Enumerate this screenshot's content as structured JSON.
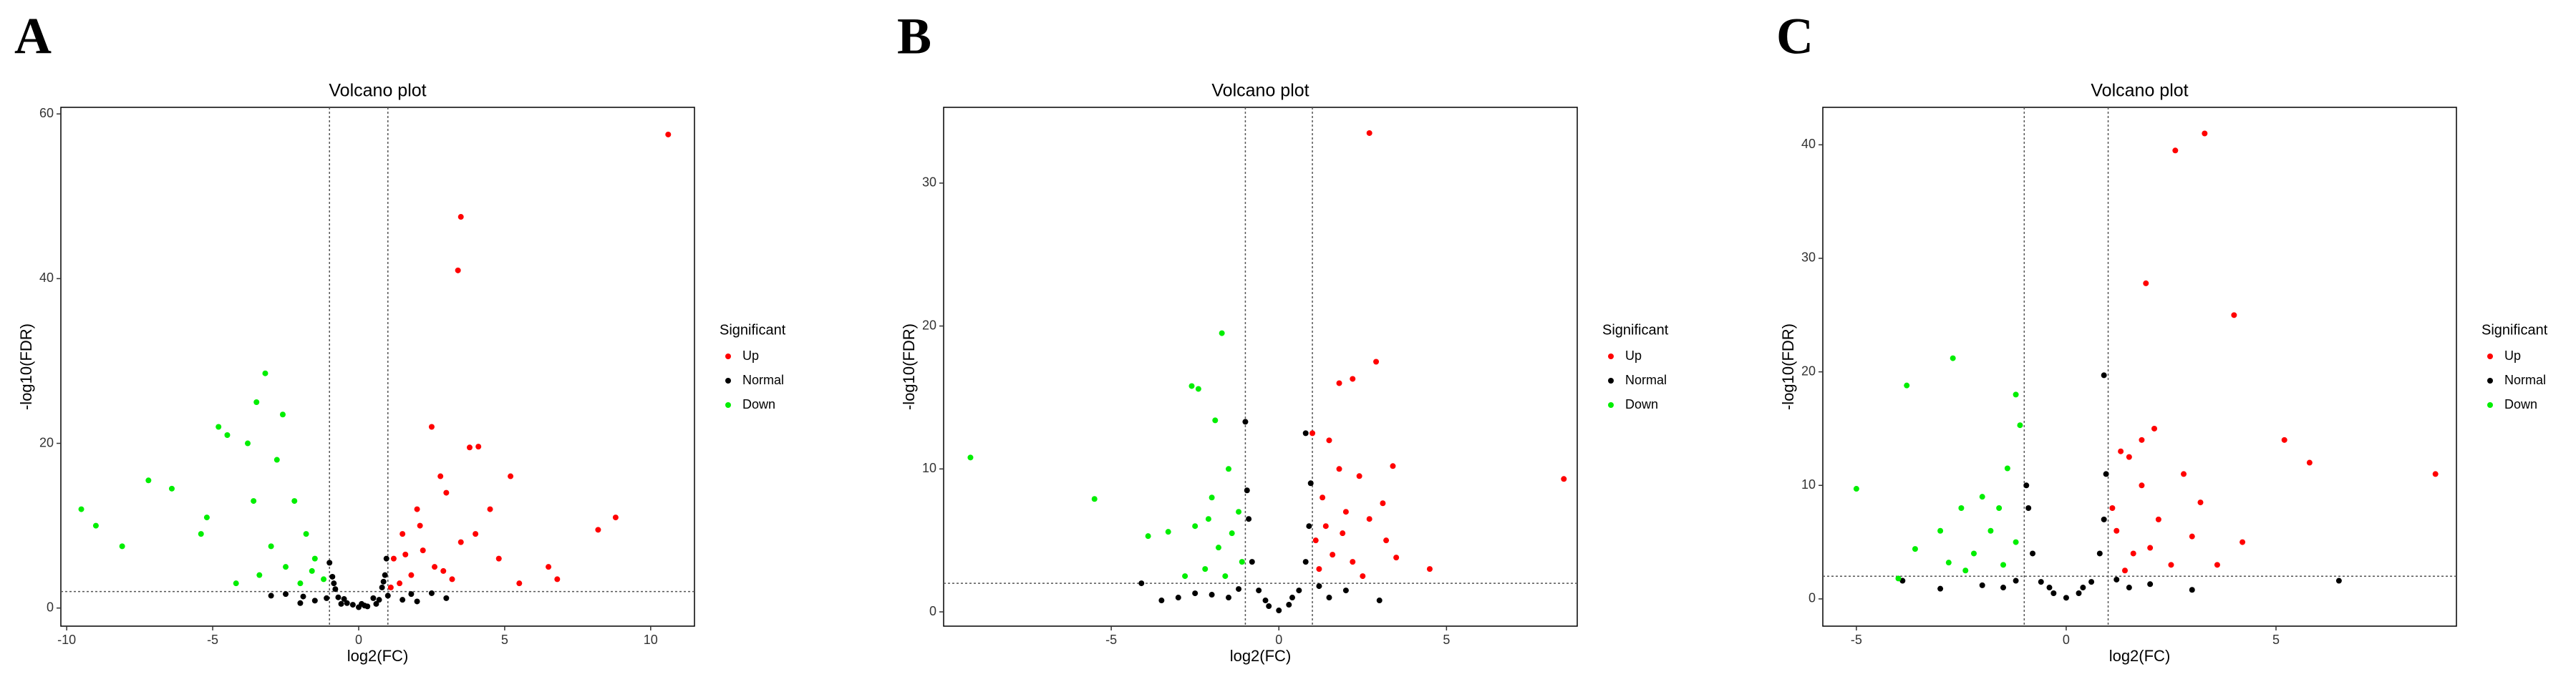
{
  "chart_data": [
    {
      "type": "scatter",
      "panel": "A",
      "title": "Volcano plot",
      "x_label": "log2(FC)",
      "y_label": "-log10(FDR)",
      "legend_title": "Significant",
      "xlim": [
        -10.2,
        11.5
      ],
      "ylim": [
        -2.2,
        60.8
      ],
      "xticks": [
        -10,
        -5,
        0,
        5,
        10
      ],
      "yticks": [
        0,
        20,
        40,
        60
      ],
      "vlines": [
        -1,
        1
      ],
      "hline": 2,
      "series": [
        {
          "name": "Up",
          "color": "#ff0000",
          "x": [
            10.6,
            3.5,
            3.4,
            2.5,
            3.8,
            4.1,
            2.8,
            5.2,
            8.8,
            8.2,
            4.5,
            3,
            2,
            1.5,
            1.2,
            2.2,
            1.8,
            3.5,
            4.8,
            6.5,
            5.5,
            6.8,
            1.4,
            2.6,
            1.1,
            3.2,
            2.1,
            1.6,
            4,
            2.9
          ],
          "values": [
            57.5,
            47.5,
            41,
            22,
            19.5,
            19.6,
            16,
            16,
            11,
            9.5,
            12,
            14,
            12,
            9,
            6,
            7,
            4,
            8,
            6,
            5,
            3,
            3.5,
            3,
            5,
            2.5,
            3.5,
            10,
            6.5,
            9,
            4.5
          ]
        },
        {
          "name": "Normal",
          "color": "#000000",
          "x": [
            0,
            0.2,
            -0.2,
            0.5,
            -0.5,
            0.8,
            -0.8,
            0.9,
            -0.9,
            0.95,
            -1,
            0.7,
            -0.7,
            0.3,
            -0.4,
            1.5,
            2,
            -1.5,
            -2,
            3,
            -3,
            1.8,
            -1.9,
            0.6,
            -0.6,
            1,
            -1.1,
            0.85,
            -0.85,
            2.5,
            -2.5,
            0.1
          ],
          "values": [
            0.1,
            0.3,
            0.4,
            1.2,
            1.1,
            2.5,
            2.3,
            4,
            3.8,
            6,
            5.5,
            1,
            1.3,
            0.2,
            0.6,
            1,
            0.8,
            0.9,
            0.6,
            1.2,
            1.5,
            1.7,
            1.4,
            0.5,
            0.5,
            1.5,
            1.2,
            3.2,
            3,
            1.8,
            1.7,
            0.5
          ]
        },
        {
          "name": "Down",
          "color": "#00ee00",
          "x": [
            -3.2,
            -2.6,
            -3.5,
            -4.8,
            -4.5,
            -3.8,
            -2.8,
            -9.5,
            -7.2,
            -6.4,
            -9,
            -8.1,
            -5.2,
            -3.6,
            -2.2,
            -1.8,
            -1.5,
            -2.5,
            -3,
            -1.2,
            -4.2,
            -5.4,
            -2,
            -1.6,
            -3.4
          ],
          "values": [
            28.5,
            23.5,
            25,
            22,
            21,
            20,
            18,
            12,
            15.5,
            14.5,
            10,
            7.5,
            11,
            13,
            13,
            9,
            6,
            5,
            7.5,
            3.5,
            3,
            9,
            3,
            4.5,
            4
          ]
        }
      ]
    },
    {
      "type": "scatter",
      "panel": "B",
      "title": "Volcano plot",
      "x_label": "log2(FC)",
      "y_label": "-log10(FDR)",
      "legend_title": "Significant",
      "xlim": [
        -10,
        8.9
      ],
      "ylim": [
        -1,
        35.3
      ],
      "xticks": [
        -5,
        0,
        5
      ],
      "yticks": [
        0,
        10,
        20,
        30
      ],
      "vlines": [
        -1,
        1
      ],
      "hline": 2,
      "series": [
        {
          "name": "Up",
          "color": "#ff0000",
          "x": [
            2.7,
            2.9,
            1.8,
            2.2,
            1,
            1.5,
            2.4,
            3.4,
            8.5,
            1.8,
            1.3,
            2,
            2.7,
            3.2,
            1.1,
            1.6,
            2.2,
            4.5,
            3.1,
            1.2,
            1.9,
            2.5,
            1.4,
            3.5
          ],
          "values": [
            33.5,
            17.5,
            16,
            16.3,
            12.5,
            12,
            9.5,
            10.2,
            9.3,
            10,
            8,
            7,
            6.5,
            5,
            5,
            4,
            3.5,
            3,
            7.6,
            3,
            5.5,
            2.5,
            6,
            3.8
          ]
        },
        {
          "name": "Normal",
          "color": "#000000",
          "x": [
            -1,
            0.8,
            -4.1,
            -3,
            -2.5,
            0,
            0.3,
            -0.3,
            0.6,
            -0.6,
            0.8,
            -0.8,
            0.9,
            -0.9,
            0.95,
            -0.95,
            1.5,
            -1.5,
            2,
            -2,
            3,
            -3.5,
            0.4,
            -0.4,
            1.2,
            -1.2
          ],
          "values": [
            13.3,
            12.5,
            2,
            1,
            1.3,
            0.1,
            0.5,
            0.4,
            1.5,
            1.5,
            3.5,
            3.5,
            6,
            6.5,
            9,
            8.5,
            1,
            1,
            1.5,
            1.2,
            0.8,
            0.8,
            1,
            0.8,
            1.8,
            1.6
          ]
        },
        {
          "name": "Down",
          "color": "#00ee00",
          "x": [
            -1.7,
            -2.6,
            -2.4,
            -1.9,
            -9.2,
            -5.5,
            -3.9,
            -3.3,
            -1.5,
            -2,
            -2.5,
            -1.2,
            -1.8,
            -2.2,
            -1.1,
            -2.8,
            -1.4,
            -2.1,
            -1.6
          ],
          "values": [
            19.5,
            15.8,
            15.6,
            13.4,
            10.8,
            7.9,
            5.3,
            5.6,
            10,
            8,
            6,
            7,
            4.5,
            3,
            3.5,
            2.5,
            5.5,
            6.5,
            2.5
          ]
        }
      ]
    },
    {
      "type": "scatter",
      "panel": "C",
      "title": "Volcano plot",
      "x_label": "log2(FC)",
      "y_label": "-log10(FDR)",
      "legend_title": "Significant",
      "xlim": [
        -5.8,
        9.3
      ],
      "ylim": [
        -2.4,
        43.3
      ],
      "xticks": [
        -5,
        0,
        5
      ],
      "yticks": [
        0,
        10,
        20,
        30,
        40
      ],
      "vlines": [
        -1,
        1
      ],
      "hline": 2,
      "series": [
        {
          "name": "Up",
          "color": "#ff0000",
          "x": [
            3.3,
            2.6,
            4,
            1.9,
            2.1,
            1.8,
            5.2,
            5.8,
            8.8,
            2.8,
            1.5,
            1.8,
            3.2,
            2.2,
            4.2,
            1.2,
            1.6,
            2.5,
            3,
            1.4,
            1.1,
            3.6,
            2,
            1.3
          ],
          "values": [
            41,
            39.5,
            25,
            27.8,
            15,
            14,
            14,
            12,
            11,
            11,
            12.5,
            10,
            8.5,
            7,
            5,
            6,
            4,
            3,
            5.5,
            2.5,
            8,
            3,
            4.5,
            13
          ]
        },
        {
          "name": "Normal",
          "color": "#000000",
          "x": [
            0.9,
            -3.9,
            6.5,
            0,
            0.3,
            -0.3,
            0.6,
            -0.6,
            0.8,
            -0.8,
            0.9,
            -0.9,
            0.95,
            -0.95,
            1.5,
            -1.5,
            2,
            -2,
            3,
            -3,
            0.4,
            -0.4,
            1.2,
            -1.2
          ],
          "values": [
            19.7,
            1.6,
            1.6,
            0.1,
            0.5,
            0.5,
            1.5,
            1.5,
            4,
            4,
            7,
            8,
            11,
            10,
            1,
            1,
            1.3,
            1.2,
            0.8,
            0.9,
            1,
            1,
            1.7,
            1.6
          ]
        },
        {
          "name": "Down",
          "color": "#00ee00",
          "x": [
            -2.7,
            -3.8,
            -1.2,
            -5,
            -1.1,
            -1.4,
            -2,
            -2.5,
            -3,
            -1.8,
            -3.6,
            -1.5,
            -2.2,
            -1.2,
            -4,
            -2.8,
            -1.6,
            -2.4
          ],
          "values": [
            21.2,
            18.8,
            18,
            9.7,
            15.3,
            11.5,
            9,
            8,
            6,
            6,
            4.4,
            3,
            4,
            5,
            1.8,
            3.2,
            8,
            2.5
          ]
        }
      ]
    }
  ]
}
